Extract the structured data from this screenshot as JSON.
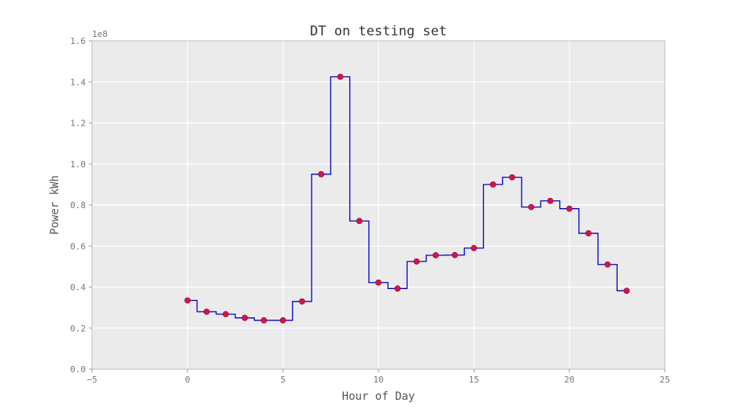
{
  "chart_data": {
    "type": "line",
    "title": "DT on testing set",
    "xlabel": "Hour of Day",
    "ylabel": "Power kWh",
    "y_multiplier_label": "1e8",
    "xlim": [
      -5,
      25
    ],
    "ylim": [
      0.0,
      1.6
    ],
    "x_ticks": [
      -5,
      0,
      5,
      10,
      15,
      20,
      25
    ],
    "y_ticks": [
      0.0,
      0.2,
      0.4,
      0.6,
      0.8,
      1.0,
      1.2,
      1.4,
      1.6
    ],
    "x_tick_labels": [
      "−5",
      "0",
      "5",
      "10",
      "15",
      "20",
      "25"
    ],
    "y_tick_labels": [
      "0.0",
      "0.2",
      "0.4",
      "0.6",
      "0.8",
      "1.0",
      "1.2",
      "1.4",
      "1.6"
    ],
    "grid": true,
    "x": [
      0,
      1,
      2,
      3,
      4,
      5,
      6,
      7,
      8,
      9,
      10,
      11,
      12,
      13,
      14,
      15,
      16,
      17,
      18,
      19,
      20,
      21,
      22,
      23
    ],
    "series": [
      {
        "style": "step-mid",
        "color": "#0000cc",
        "values": [
          0.335,
          0.28,
          0.268,
          0.25,
          0.238,
          0.238,
          0.33,
          0.95,
          1.425,
          0.722,
          0.422,
          0.393,
          0.525,
          0.555,
          0.556,
          0.59,
          0.9,
          0.935,
          0.79,
          0.82,
          0.782,
          0.662,
          0.51,
          0.382
        ]
      },
      {
        "style": "scatter",
        "color": "#dd1144",
        "values": [
          0.335,
          0.28,
          0.268,
          0.25,
          0.238,
          0.238,
          0.33,
          0.95,
          1.425,
          0.722,
          0.422,
          0.393,
          0.525,
          0.555,
          0.556,
          0.59,
          0.9,
          0.935,
          0.79,
          0.82,
          0.782,
          0.662,
          0.51,
          0.382
        ]
      }
    ]
  }
}
